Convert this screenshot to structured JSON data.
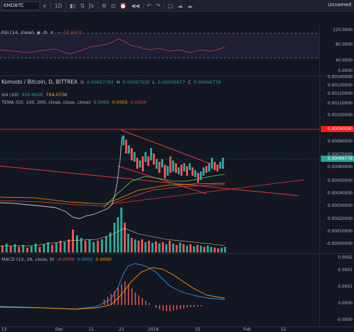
{
  "toolbar": {
    "symbol": "KMDBTC",
    "interval": "1D",
    "layout_name": "Unnamed"
  },
  "rsi": {
    "title": "RSI (14, close)",
    "value": "57.8073",
    "axis": [
      "120.0000",
      "80.0000",
      "40.0000",
      "0.0000"
    ]
  },
  "main": {
    "title": "Komodo / Bitcoin, D, BITTREX",
    "ohlc": {
      "o_label": "O",
      "o": "0.00057782",
      "h_label": "H",
      "h": "0.00067520",
      "l_label": "L",
      "l": "0.00056877",
      "c_label": "C",
      "c": "0.00066778"
    },
    "vol": {
      "title": "Vol (20)",
      "v1": "406.862K",
      "v2": "704.073K"
    },
    "tema": {
      "title": "TEMA (50, 100, 200, close, close, close)",
      "v1": "0.0005",
      "v2": "0.0005",
      "v3": "0.0004"
    },
    "axis": [
      "0.00140000",
      "0.00130000",
      "0.00120000",
      "0.00110000",
      "0.00100000",
      "0.00080000",
      "0.00070000",
      "0.00060000",
      "0.00050000",
      "0.00040000",
      "0.00030000",
      "0.00020000",
      "0.00010000",
      "-0.00000000"
    ],
    "tag_resistance": "0.00090090",
    "tag_price": "0.00066778"
  },
  "macd": {
    "title": "MACD (12, 26, close, 9)",
    "v1": "-0.0000",
    "v2": "0.0000",
    "v3": "0.0000",
    "axis": [
      "0.0002",
      "0.0001",
      "0.0001",
      "0.0000",
      "-0.0000"
    ]
  },
  "time_axis": [
    "13",
    "Dec",
    "11",
    "21",
    "2018",
    "15",
    "Feb",
    "12"
  ],
  "colors": {
    "bg": "#131722",
    "up": "#26a69a",
    "down": "#ef5350",
    "resistance": "#ff1a1a",
    "macd_line": "#2196f3",
    "signal_line": "#ff9800",
    "rsi_line": "#7e57c2",
    "tema_green": "#4caf50",
    "tema_orange": "#ff9800",
    "tema_red": "#f44336"
  }
}
